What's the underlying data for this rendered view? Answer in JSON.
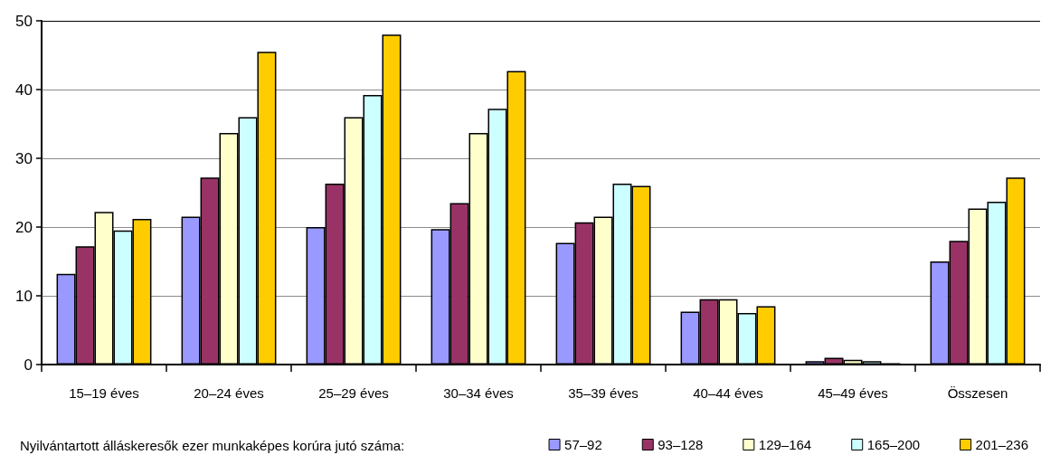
{
  "chart_data": {
    "type": "bar",
    "categories": [
      "15–19 éves",
      "20–24 éves",
      "25–29 éves",
      "30–34 éves",
      "35–39 éves",
      "40–44 éves",
      "45–49 éves",
      "Összesen"
    ],
    "series": [
      {
        "name": "57–92",
        "color": "#9999ff",
        "values": [
          13.2,
          21.5,
          20.0,
          19.7,
          17.7,
          7.7,
          0.5,
          15.0
        ]
      },
      {
        "name": "93–128",
        "color": "#993366",
        "values": [
          17.2,
          27.2,
          26.3,
          23.5,
          20.7,
          9.5,
          1.0,
          18.0
        ]
      },
      {
        "name": "129–164",
        "color": "#ffffcc",
        "values": [
          22.2,
          33.7,
          36.0,
          33.7,
          21.5,
          9.5,
          0.7,
          22.7
        ]
      },
      {
        "name": "165–200",
        "color": "#ccffff",
        "values": [
          19.5,
          36.0,
          39.2,
          37.2,
          26.3,
          7.5,
          0.5,
          23.7
        ]
      },
      {
        "name": "201–236",
        "color": "#ffcc00",
        "values": [
          21.2,
          45.5,
          48.0,
          42.7,
          26.0,
          8.5,
          0.2,
          27.2
        ]
      }
    ],
    "legend_title": "Nyilvántartott álláskeresők ezer munkaképes korúra jutó száma:",
    "ylim": [
      0,
      50
    ],
    "yticks": [
      0,
      10,
      20,
      30,
      40,
      50
    ],
    "grid": "y",
    "legend": "bottom"
  }
}
